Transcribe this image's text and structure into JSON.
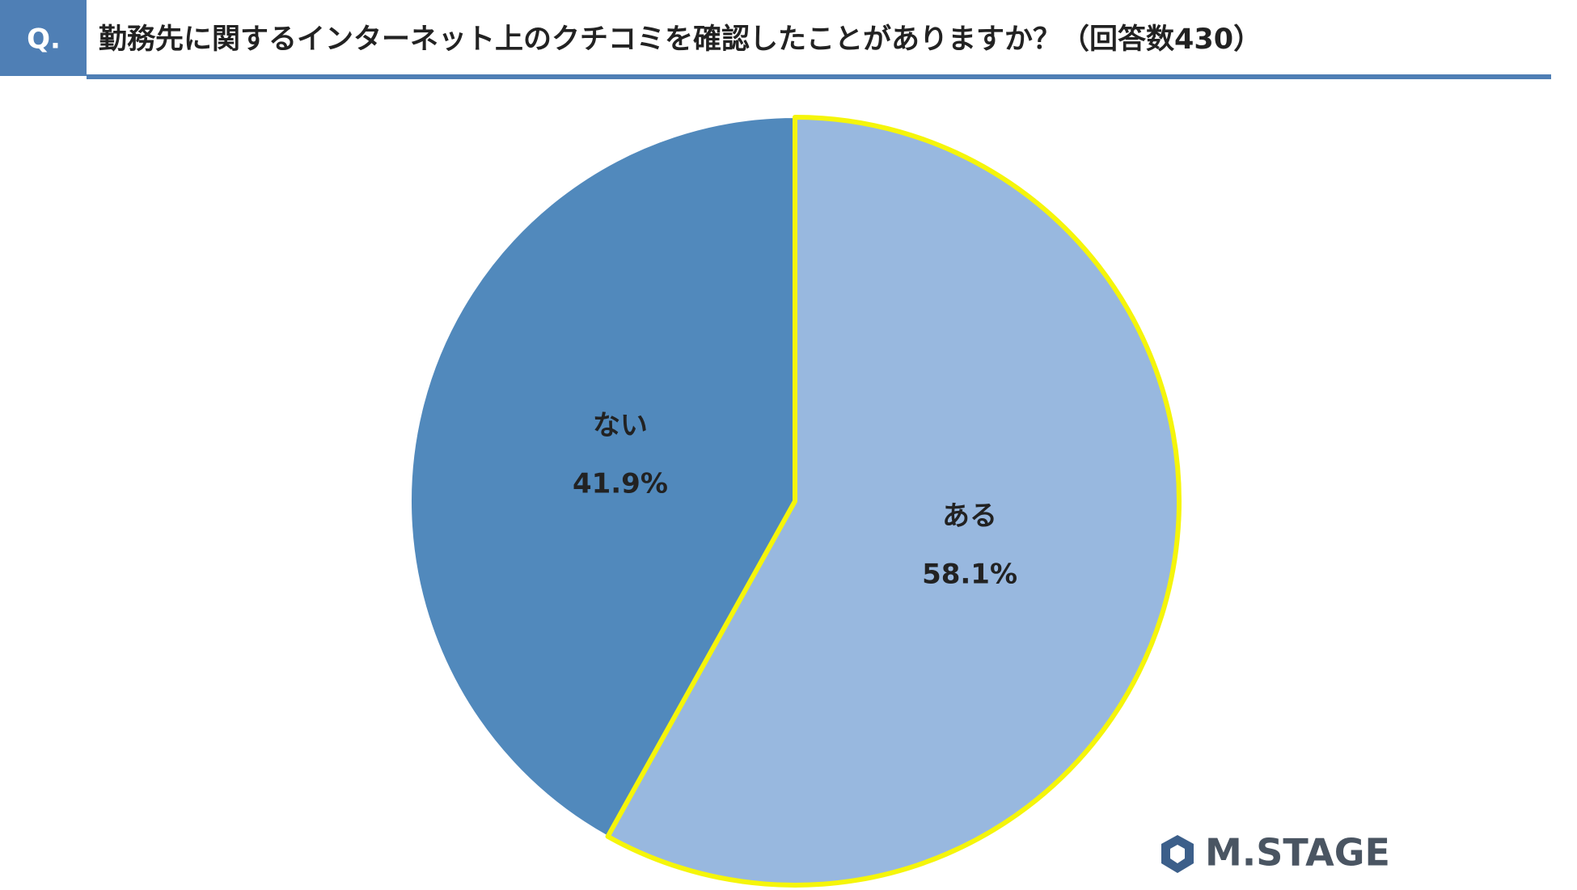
{
  "badge": "Q.",
  "logo": "M.STAGE",
  "chart_data": {
    "type": "pie",
    "title": "勤務先に関するインターネット上のクチコミを確認したことがありますか？（回答数430）",
    "categories": [
      "ある",
      "ない"
    ],
    "values": [
      58.1,
      41.9
    ],
    "value_labels": [
      "58.1%",
      "41.9%"
    ],
    "colors": [
      "#98b8df",
      "#5189bc"
    ],
    "highlight_color": "#f5f50a"
  }
}
